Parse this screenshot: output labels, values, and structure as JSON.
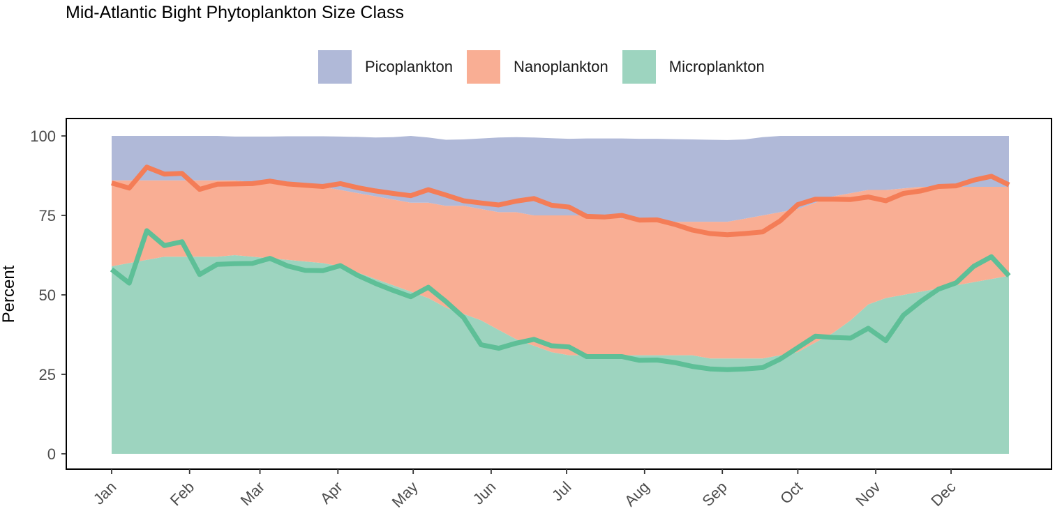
{
  "chart_data": {
    "type": "area",
    "title": "Mid-Atlantic Bight Phytoplankton Size Class",
    "xlabel": "",
    "ylabel": "Percent",
    "ylim": [
      0,
      100
    ],
    "yticks": [
      0,
      25,
      50,
      75,
      100
    ],
    "grid": false,
    "legend_position": "top",
    "x_start_label": "Jan",
    "x_week_index": [
      0,
      1,
      2,
      3,
      4,
      5,
      6,
      7,
      8,
      9,
      10,
      11,
      12,
      13,
      14,
      15,
      16,
      17,
      18,
      19,
      20,
      21,
      22,
      23,
      24,
      25,
      26,
      27,
      28,
      29,
      30,
      31,
      32,
      33,
      34,
      35,
      36,
      37,
      38,
      39,
      40,
      41,
      42,
      43,
      44,
      45,
      46,
      47,
      48,
      49,
      50,
      51
    ],
    "month_ticks": [
      {
        "label": "Jan",
        "week": 0
      },
      {
        "label": "Feb",
        "week": 4.43
      },
      {
        "label": "Mar",
        "week": 8.43
      },
      {
        "label": "Apr",
        "week": 12.86
      },
      {
        "label": "May",
        "week": 17.14
      },
      {
        "label": "Jun",
        "week": 21.57
      },
      {
        "label": "Jul",
        "week": 25.86
      },
      {
        "label": "Aug",
        "week": 30.29
      },
      {
        "label": "Sep",
        "week": 34.71
      },
      {
        "label": "Oct",
        "week": 39.0
      },
      {
        "label": "Nov",
        "week": 43.43
      },
      {
        "label": "Dec",
        "week": 47.71
      }
    ],
    "stacked_area_series": [
      {
        "name": "Microplankton",
        "color": "#9dd4bf",
        "values": [
          59,
          60,
          61,
          62,
          62,
          62,
          62,
          62.5,
          62,
          61.5,
          61,
          60.5,
          60,
          59,
          57,
          55,
          53,
          51,
          49,
          46,
          44,
          42,
          39,
          36,
          34,
          32,
          31,
          31,
          31,
          31,
          31,
          31,
          31,
          31,
          30,
          30,
          30,
          30,
          31,
          32,
          35,
          38,
          42,
          47,
          49,
          50,
          51,
          52,
          53,
          54,
          55,
          56
        ]
      },
      {
        "name": "Nanoplankton",
        "color": "#f9ae94",
        "values": [
          86,
          86,
          86,
          86,
          86,
          86,
          86,
          86,
          85.5,
          85,
          84.5,
          84,
          84,
          83,
          82,
          81,
          80,
          79,
          79,
          78,
          78,
          77,
          76,
          76,
          75,
          75,
          75,
          75,
          75,
          74,
          74,
          74,
          73,
          73,
          73,
          73,
          74,
          75,
          76,
          77,
          79,
          81,
          82,
          83,
          83,
          83.5,
          84,
          84,
          84,
          84,
          84,
          84
        ]
      },
      {
        "name": "Picoplankton",
        "color": "#b0b9d8",
        "values": [
          100,
          100,
          100,
          100,
          100,
          100,
          100,
          99.8,
          99.8,
          99.8,
          99.9,
          99.9,
          99.9,
          99.8,
          99.7,
          99.5,
          99.6,
          100,
          99.5,
          98.8,
          98.9,
          99.2,
          99.5,
          99.6,
          99.5,
          99.3,
          99.1,
          99.2,
          99.2,
          99.2,
          99.1,
          99.1,
          99.0,
          98.9,
          98.8,
          98.7,
          98.9,
          99.6,
          100,
          100,
          100,
          100,
          100,
          100,
          100,
          100,
          100,
          100,
          100,
          100,
          100,
          100
        ]
      }
    ],
    "line_series": [
      {
        "name": "Nanoplankton",
        "color": "#f47d57",
        "values": [
          85.2,
          83.6,
          90.2,
          88,
          88.2,
          83.2,
          84.8,
          84.9,
          85,
          85.8,
          84.9,
          84.5,
          84.1,
          85,
          83.7,
          82.7,
          81.9,
          81.2,
          83.1,
          81.4,
          79.6,
          78.9,
          78.3,
          79.5,
          80.3,
          78.2,
          77.6,
          74.7,
          74.5,
          75,
          73.5,
          73.6,
          72.2,
          70.4,
          69.3,
          68.9,
          69.3,
          69.8,
          73.3,
          78.4,
          80.1,
          80.1,
          80,
          80.8,
          79.6,
          81.9,
          82.7,
          84.1,
          84.3,
          86.1,
          87.3,
          84.6
        ]
      },
      {
        "name": "Microplankton",
        "color": "#5ebf97",
        "values": [
          58,
          53.7,
          70.2,
          65.5,
          66.7,
          56.4,
          59.6,
          59.8,
          59.9,
          61.5,
          59.1,
          57.7,
          57.6,
          59.2,
          56.1,
          53.6,
          51.4,
          49.4,
          52.4,
          47.9,
          42.9,
          34.3,
          33.2,
          34.8,
          36,
          34,
          33.6,
          30.6,
          30.6,
          30.6,
          29.4,
          29.5,
          28.7,
          27.5,
          26.7,
          26.5,
          26.7,
          27.1,
          29.8,
          33.4,
          37,
          36.6,
          36.4,
          39.5,
          35.6,
          43.6,
          48,
          51.8,
          53.8,
          59,
          62,
          56
        ]
      }
    ],
    "legend": [
      {
        "name": "Picoplankton",
        "color": "#b0b9d8"
      },
      {
        "name": "Nanoplankton",
        "color": "#f9ae94"
      },
      {
        "name": "Microplankton",
        "color": "#9dd4bf"
      }
    ]
  }
}
